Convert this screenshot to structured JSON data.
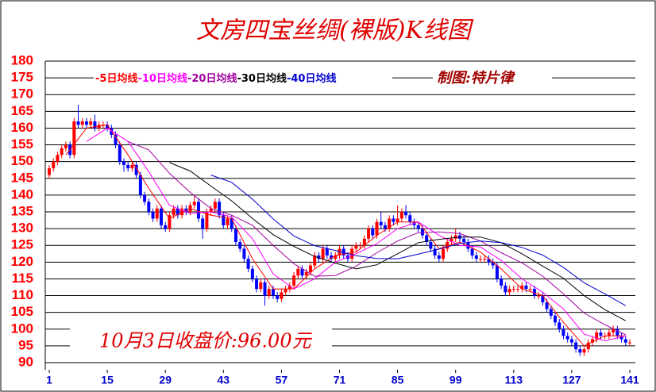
{
  "chart_data": {
    "type": "candlestick",
    "title": "文房四宝丝绸(裸版)K线图",
    "credit": "制图:特片律",
    "annotation": "10月3日收盘价:96.00元",
    "up_color": "#ff0000",
    "down_color": "#0000ff",
    "grid": true,
    "xlim": [
      1,
      141
    ],
    "xticks": [
      1,
      15,
      29,
      43,
      57,
      71,
      85,
      99,
      113,
      127,
      141
    ],
    "ylim": [
      90,
      180
    ],
    "yticks": [
      90,
      95,
      100,
      105,
      110,
      115,
      120,
      125,
      130,
      135,
      140,
      145,
      150,
      155,
      160,
      165,
      170,
      175,
      180
    ],
    "x": [
      1,
      2,
      3,
      4,
      5,
      6,
      7,
      8,
      9,
      10,
      11,
      12,
      13,
      14,
      15,
      16,
      17,
      18,
      19,
      20,
      21,
      22,
      23,
      24,
      25,
      26,
      27,
      28,
      29,
      30,
      31,
      32,
      33,
      34,
      35,
      36,
      37,
      38,
      39,
      40,
      41,
      42,
      43,
      44,
      45,
      46,
      47,
      48,
      49,
      50,
      51,
      52,
      53,
      54,
      55,
      56,
      57,
      58,
      59,
      60,
      61,
      62,
      63,
      64,
      65,
      66,
      67,
      68,
      69,
      70,
      71,
      72,
      73,
      74,
      75,
      76,
      77,
      78,
      79,
      80,
      81,
      82,
      83,
      84,
      85,
      86,
      87,
      88,
      89,
      90,
      91,
      92,
      93,
      94,
      95,
      96,
      97,
      98,
      99,
      100,
      101,
      102,
      103,
      104,
      105,
      106,
      107,
      108,
      109,
      110,
      111,
      112,
      113,
      114,
      115,
      116,
      117,
      118,
      119,
      120,
      121,
      122,
      123,
      124,
      125,
      126,
      127,
      128,
      129,
      130,
      131,
      132,
      133,
      134,
      135,
      136,
      137,
      138,
      139,
      140,
      141
    ],
    "open": [
      146,
      148,
      150,
      152,
      154,
      155,
      152,
      162,
      161,
      162,
      161,
      162,
      160,
      161,
      161,
      160,
      158,
      155,
      150,
      149,
      148,
      149,
      146,
      140,
      138,
      135,
      133,
      136,
      131,
      130,
      134,
      136,
      134,
      136,
      135,
      137,
      138,
      133,
      130,
      135,
      136,
      138,
      134,
      131,
      133,
      130,
      126,
      124,
      121,
      118,
      115,
      112,
      114,
      110,
      112,
      110,
      109,
      111,
      112,
      113,
      116,
      118,
      116,
      117,
      119,
      122,
      121,
      124,
      122,
      121,
      122,
      124,
      122,
      121,
      124,
      125,
      125,
      127,
      130,
      128,
      132,
      131,
      130,
      133,
      132,
      133,
      135,
      134,
      132,
      131,
      130,
      128,
      126,
      124,
      122,
      121,
      124,
      126,
      127,
      128,
      127,
      126,
      124,
      122,
      121,
      121,
      121,
      120,
      119,
      115,
      113,
      111,
      112,
      112,
      112,
      113,
      112,
      112,
      110,
      110,
      108,
      106,
      104,
      102,
      100,
      98,
      97,
      96,
      94,
      93,
      94,
      96,
      97,
      99,
      98,
      98,
      99,
      100,
      98,
      97,
      96
    ],
    "close": [
      148,
      150,
      152,
      154,
      155,
      152,
      162,
      161,
      162,
      161,
      162,
      160,
      161,
      161,
      160,
      158,
      155,
      150,
      149,
      148,
      149,
      146,
      140,
      138,
      135,
      133,
      136,
      131,
      130,
      134,
      136,
      134,
      136,
      135,
      137,
      138,
      133,
      130,
      135,
      136,
      138,
      134,
      131,
      133,
      130,
      126,
      124,
      121,
      118,
      115,
      112,
      114,
      110,
      112,
      110,
      109,
      111,
      112,
      113,
      116,
      118,
      116,
      117,
      119,
      122,
      121,
      124,
      122,
      121,
      122,
      124,
      122,
      121,
      124,
      125,
      125,
      127,
      130,
      128,
      132,
      131,
      130,
      133,
      132,
      133,
      135,
      134,
      132,
      131,
      130,
      128,
      126,
      124,
      122,
      121,
      124,
      126,
      127,
      128,
      127,
      126,
      124,
      122,
      121,
      121,
      121,
      120,
      119,
      115,
      113,
      111,
      112,
      112,
      112,
      113,
      112,
      112,
      110,
      110,
      108,
      106,
      104,
      102,
      100,
      98,
      97,
      96,
      94,
      93,
      94,
      96,
      97,
      99,
      98,
      98,
      99,
      100,
      98,
      97,
      96,
      96
    ],
    "high": [
      149,
      151,
      153,
      155,
      156,
      156,
      163,
      167,
      163,
      163,
      163,
      164,
      162,
      162,
      162,
      161,
      159,
      156,
      151,
      150,
      150,
      150,
      147,
      141,
      139,
      136,
      137,
      137,
      132,
      135,
      137,
      137,
      137,
      137,
      138,
      140,
      139,
      134,
      136,
      137,
      139,
      139,
      135,
      134,
      134,
      131,
      127,
      125,
      122,
      119,
      116,
      115,
      115,
      113,
      113,
      111,
      112,
      113,
      114,
      117,
      119,
      119,
      118,
      120,
      123,
      123,
      125,
      125,
      123,
      123,
      125,
      125,
      123,
      125,
      126,
      126,
      128,
      131,
      131,
      133,
      135,
      132,
      134,
      134,
      137,
      136,
      137,
      135,
      133,
      132,
      131,
      129,
      127,
      125,
      123,
      125,
      127,
      128,
      130,
      129,
      128,
      127,
      125,
      123,
      122,
      122,
      122,
      121,
      120,
      116,
      114,
      113,
      113,
      113,
      114,
      114,
      113,
      113,
      111,
      111,
      109,
      107,
      105,
      103,
      101,
      99,
      98,
      97,
      95,
      95,
      97,
      98,
      100,
      100,
      99,
      100,
      101,
      101,
      99,
      98,
      97
    ],
    "low": [
      145,
      147,
      149,
      151,
      153,
      151,
      151,
      160,
      160,
      160,
      160,
      159,
      159,
      160,
      159,
      157,
      154,
      149,
      147,
      147,
      147,
      145,
      139,
      137,
      134,
      132,
      132,
      130,
      129,
      129,
      133,
      133,
      133,
      134,
      134,
      136,
      132,
      127,
      129,
      134,
      135,
      133,
      130,
      130,
      129,
      125,
      123,
      120,
      117,
      114,
      111,
      111,
      107,
      109,
      109,
      108,
      108,
      110,
      111,
      112,
      115,
      115,
      115,
      116,
      118,
      120,
      120,
      121,
      120,
      120,
      121,
      121,
      120,
      120,
      123,
      124,
      124,
      126,
      127,
      127,
      130,
      129,
      129,
      131,
      131,
      132,
      133,
      131,
      130,
      129,
      127,
      125,
      123,
      121,
      120,
      120,
      123,
      125,
      126,
      126,
      125,
      123,
      121,
      120,
      120,
      120,
      119,
      118,
      114,
      112,
      110,
      110,
      111,
      111,
      111,
      111,
      111,
      109,
      109,
      107,
      105,
      103,
      101,
      99,
      97,
      96,
      95,
      93,
      92,
      92,
      93,
      95,
      96,
      97,
      97,
      97,
      98,
      97,
      96,
      95,
      95
    ],
    "series": [
      {
        "name": "-5日均线",
        "color": "#ff0000",
        "x": [
          5,
          10,
          15,
          20,
          25,
          30,
          35,
          40,
          45,
          50,
          55,
          60,
          65,
          70,
          75,
          80,
          85,
          90,
          95,
          100,
          105,
          110,
          115,
          120,
          125,
          130,
          135,
          140
        ],
        "values": [
          152,
          160,
          161,
          152,
          142,
          133,
          136,
          134,
          133,
          121,
          112,
          112,
          118,
          122,
          123,
          128,
          132,
          132,
          124,
          126,
          123,
          118,
          112,
          110,
          102,
          95,
          98,
          98
        ]
      },
      {
        "name": "-10日均线",
        "color": "#ff00ff",
        "x": [
          10,
          15,
          20,
          25,
          30,
          35,
          40,
          45,
          50,
          55,
          60,
          65,
          70,
          75,
          80,
          85,
          90,
          95,
          100,
          105,
          110,
          115,
          120,
          125,
          130,
          135,
          140
        ],
        "values": [
          156,
          160,
          156,
          147,
          137,
          134.5,
          135,
          133.5,
          127,
          116.5,
          112,
          115,
          120,
          122.5,
          125.5,
          130,
          132,
          128,
          125,
          124.5,
          120.5,
          115,
          111,
          106,
          98.5,
          96.5,
          98
        ]
      },
      {
        "name": "-20日均线",
        "color": "#a000a0",
        "x": [
          20,
          25,
          30,
          35,
          40,
          45,
          50,
          55,
          60,
          65,
          70,
          75,
          80,
          85,
          90,
          95,
          100,
          105,
          110,
          115,
          120,
          125,
          130,
          135,
          140
        ],
        "values": [
          156,
          153.5,
          146.5,
          140.8,
          136,
          134,
          131,
          125,
          119.5,
          115.8,
          116,
          118.8,
          122.8,
          126.3,
          128.8,
          129,
          128.5,
          126.3,
          122.8,
          119.8,
          115.8,
          110.5,
          104.8,
          101.3,
          98.3
        ]
      },
      {
        "name": "-30日均线",
        "color": "#000000",
        "x": [
          30,
          35,
          40,
          45,
          50,
          55,
          60,
          65,
          70,
          75,
          80,
          85,
          90,
          95,
          100,
          105,
          110,
          115,
          120,
          125,
          130,
          135,
          140
        ],
        "values": [
          149.7,
          147.2,
          142.7,
          138.3,
          133,
          128.2,
          124.7,
          121.7,
          119.7,
          118,
          119.2,
          122.5,
          125.8,
          126.8,
          127.5,
          127.5,
          125.8,
          122.5,
          118.8,
          115.2,
          110,
          105.8,
          102.5
        ]
      },
      {
        "name": "-40日均线",
        "color": "#0000cc",
        "x": [
          40,
          45,
          50,
          55,
          60,
          65,
          70,
          75,
          80,
          85,
          90,
          95,
          100,
          105,
          110,
          115,
          120,
          125,
          130,
          135,
          140
        ],
        "values": [
          146,
          143.8,
          138.8,
          132.9,
          127.8,
          124.9,
          123.5,
          121.9,
          121.1,
          121,
          122.4,
          123.9,
          125.6,
          126.3,
          125.8,
          124.4,
          122.1,
          118.4,
          113.8,
          110.5,
          107
        ]
      }
    ]
  }
}
